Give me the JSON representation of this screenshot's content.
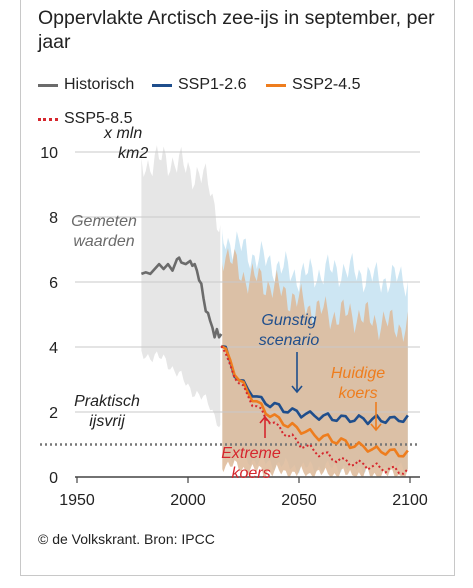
{
  "title": "Oppervlakte Arctisch zee-ijs in september, per jaar",
  "legend": [
    {
      "label": "Historisch",
      "color": "#6b6b6b",
      "style": "solid"
    },
    {
      "label": "SSP1-2.6",
      "color": "#1f4e8c",
      "style": "solid"
    },
    {
      "label": "SSP2-4.5",
      "color": "#ee7d1e",
      "style": "solid"
    },
    {
      "label": "SSP5-8.5",
      "color": "#d6262d",
      "style": "dotted"
    }
  ],
  "unit_label_line1": "x mln",
  "unit_label_line2": "km2",
  "source": "© de Volkskrant. Bron: IPCC",
  "annotations": {
    "gemeten_1": "Gemeten",
    "gemeten_2": "waarden",
    "praktisch_1": "Praktisch",
    "praktisch_2": "ijsvrij",
    "gunstig_1": "Gunstig",
    "gunstig_2": "scenario",
    "huidige_1": "Huidige",
    "huidige_2": "koers",
    "extreme_1": "Extreme",
    "extreme_2": "koers"
  },
  "chart_data": {
    "type": "line",
    "xlabel": "",
    "ylabel": "x mln km2",
    "xlim": [
      1950,
      2100
    ],
    "ylim": [
      0,
      10
    ],
    "x_ticks": [
      1950,
      2000,
      2050,
      2100
    ],
    "y_ticks": [
      0,
      2,
      4,
      6,
      8,
      10
    ],
    "threshold": {
      "y": 1,
      "style": "dotted"
    },
    "grid": true,
    "series": [
      {
        "name": "Historisch",
        "color": "#6b6b6b",
        "points": [
          [
            1979,
            6.25
          ],
          [
            1981,
            6.3
          ],
          [
            1983,
            6.25
          ],
          [
            1985,
            6.4
          ],
          [
            1987,
            6.55
          ],
          [
            1989,
            6.4
          ],
          [
            1991,
            6.55
          ],
          [
            1993,
            6.35
          ],
          [
            1995,
            6.7
          ],
          [
            1996,
            6.75
          ],
          [
            1997,
            6.6
          ],
          [
            1999,
            6.55
          ],
          [
            2001,
            6.65
          ],
          [
            2002,
            6.5
          ],
          [
            2003,
            6.55
          ],
          [
            2004,
            6.35
          ],
          [
            2005,
            6.05
          ],
          [
            2006,
            5.95
          ],
          [
            2007,
            5.5
          ],
          [
            2008,
            5.1
          ],
          [
            2009,
            5.05
          ],
          [
            2010,
            4.8
          ],
          [
            2011,
            4.6
          ],
          [
            2012,
            4.3
          ],
          [
            2013,
            4.55
          ],
          [
            2014,
            4.3
          ],
          [
            2015,
            4.4
          ]
        ]
      },
      {
        "name": "SSP1-2.6",
        "color": "#1f4e8c",
        "points": [
          [
            2015,
            4.1
          ],
          [
            2017,
            3.9
          ],
          [
            2019,
            3.5
          ],
          [
            2021,
            3.2
          ],
          [
            2023,
            3.0
          ],
          [
            2025,
            2.85
          ],
          [
            2027,
            2.7
          ],
          [
            2029,
            2.6
          ],
          [
            2031,
            2.45
          ],
          [
            2033,
            2.35
          ],
          [
            2035,
            2.3
          ],
          [
            2037,
            2.25
          ],
          [
            2039,
            2.2
          ],
          [
            2041,
            2.15
          ],
          [
            2043,
            2.1
          ],
          [
            2045,
            2.05
          ],
          [
            2047,
            2.0
          ],
          [
            2049,
            2.0
          ],
          [
            2051,
            1.95
          ],
          [
            2053,
            1.95
          ],
          [
            2055,
            1.9
          ],
          [
            2057,
            1.9
          ],
          [
            2059,
            1.88
          ],
          [
            2061,
            1.85
          ],
          [
            2063,
            1.85
          ],
          [
            2065,
            1.82
          ],
          [
            2067,
            1.82
          ],
          [
            2069,
            1.8
          ],
          [
            2071,
            1.8
          ],
          [
            2073,
            1.8
          ],
          [
            2075,
            1.78
          ],
          [
            2077,
            1.78
          ],
          [
            2079,
            1.78
          ],
          [
            2081,
            1.75
          ],
          [
            2083,
            1.78
          ],
          [
            2085,
            1.78
          ],
          [
            2087,
            1.75
          ],
          [
            2089,
            1.78
          ],
          [
            2091,
            1.78
          ],
          [
            2093,
            1.75
          ],
          [
            2095,
            1.8
          ],
          [
            2097,
            1.78
          ],
          [
            2099,
            1.8
          ]
        ]
      },
      {
        "name": "SSP2-4.5",
        "color": "#ee7d1e",
        "points": [
          [
            2015,
            4.1
          ],
          [
            2017,
            3.85
          ],
          [
            2019,
            3.55
          ],
          [
            2021,
            3.25
          ],
          [
            2023,
            3.0
          ],
          [
            2025,
            2.8
          ],
          [
            2027,
            2.6
          ],
          [
            2029,
            2.45
          ],
          [
            2031,
            2.3
          ],
          [
            2033,
            2.15
          ],
          [
            2035,
            2.0
          ],
          [
            2037,
            1.95
          ],
          [
            2039,
            1.85
          ],
          [
            2041,
            1.75
          ],
          [
            2043,
            1.7
          ],
          [
            2045,
            1.6
          ],
          [
            2047,
            1.55
          ],
          [
            2049,
            1.5
          ],
          [
            2051,
            1.45
          ],
          [
            2053,
            1.4
          ],
          [
            2055,
            1.35
          ],
          [
            2057,
            1.3
          ],
          [
            2059,
            1.25
          ],
          [
            2061,
            1.22
          ],
          [
            2063,
            1.2
          ],
          [
            2065,
            1.15
          ],
          [
            2067,
            1.12
          ],
          [
            2069,
            1.1
          ],
          [
            2071,
            1.05
          ],
          [
            2073,
            1.0
          ],
          [
            2075,
            0.98
          ],
          [
            2077,
            0.95
          ],
          [
            2079,
            0.92
          ],
          [
            2081,
            0.9
          ],
          [
            2083,
            0.85
          ],
          [
            2085,
            0.82
          ],
          [
            2087,
            0.8
          ],
          [
            2089,
            0.8
          ],
          [
            2091,
            0.78
          ],
          [
            2093,
            0.75
          ],
          [
            2095,
            0.72
          ],
          [
            2097,
            0.72
          ],
          [
            2099,
            0.72
          ]
        ]
      },
      {
        "name": "SSP5-8.5",
        "color": "#d6262d",
        "style": "dotted",
        "points": [
          [
            2015,
            4.1
          ],
          [
            2017,
            3.7
          ],
          [
            2019,
            3.4
          ],
          [
            2021,
            3.15
          ],
          [
            2023,
            2.9
          ],
          [
            2025,
            2.7
          ],
          [
            2027,
            2.5
          ],
          [
            2029,
            2.3
          ],
          [
            2031,
            2.15
          ],
          [
            2033,
            2.0
          ],
          [
            2035,
            1.85
          ],
          [
            2037,
            1.75
          ],
          [
            2039,
            1.6
          ],
          [
            2041,
            1.5
          ],
          [
            2043,
            1.4
          ],
          [
            2045,
            1.3
          ],
          [
            2047,
            1.2
          ],
          [
            2049,
            1.1
          ],
          [
            2051,
            1.0
          ],
          [
            2053,
            0.95
          ],
          [
            2055,
            0.88
          ],
          [
            2057,
            0.8
          ],
          [
            2059,
            0.75
          ],
          [
            2061,
            0.7
          ],
          [
            2063,
            0.65
          ],
          [
            2065,
            0.6
          ],
          [
            2067,
            0.55
          ],
          [
            2069,
            0.5
          ],
          [
            2071,
            0.48
          ],
          [
            2073,
            0.45
          ],
          [
            2075,
            0.42
          ],
          [
            2077,
            0.4
          ],
          [
            2079,
            0.38
          ],
          [
            2081,
            0.35
          ],
          [
            2083,
            0.32
          ],
          [
            2085,
            0.3
          ],
          [
            2087,
            0.28
          ],
          [
            2089,
            0.25
          ],
          [
            2091,
            0.23
          ],
          [
            2093,
            0.22
          ],
          [
            2095,
            0.2
          ],
          [
            2097,
            0.18
          ],
          [
            2099,
            0.15
          ]
        ]
      }
    ],
    "bands": [
      {
        "name": "Historisch spreiding",
        "color": "#e6e6e6",
        "upper": [
          [
            1979,
            9.6
          ],
          [
            1990,
            9.8
          ],
          [
            2000,
            9.5
          ],
          [
            2010,
            9.0
          ],
          [
            2015,
            7.5
          ]
        ],
        "lower": [
          [
            1979,
            3.8
          ],
          [
            1990,
            3.6
          ],
          [
            2000,
            2.8
          ],
          [
            2010,
            2.2
          ],
          [
            2015,
            1.5
          ]
        ]
      },
      {
        "name": "SSP1-2.6 spreiding",
        "color": "#cde6f3",
        "upper": [
          [
            2015,
            7.4
          ],
          [
            2030,
            6.8
          ],
          [
            2050,
            6.2
          ],
          [
            2070,
            6.4
          ],
          [
            2085,
            6.1
          ],
          [
            2099,
            6.1
          ]
        ],
        "lower": [
          [
            2015,
            0.7
          ],
          [
            2030,
            0.5
          ],
          [
            2050,
            0.3
          ],
          [
            2070,
            0.3
          ],
          [
            2099,
            0.3
          ]
        ]
      },
      {
        "name": "SSP2-4.5 spreiding",
        "color": "#ddb898",
        "upper": [
          [
            2015,
            7.0
          ],
          [
            2025,
            6.2
          ],
          [
            2035,
            6.0
          ],
          [
            2045,
            5.6
          ],
          [
            2055,
            5.2
          ],
          [
            2065,
            5.0
          ],
          [
            2075,
            5.0
          ],
          [
            2085,
            4.8
          ],
          [
            2099,
            4.6
          ]
        ],
        "lower": [
          [
            2015,
            0.4
          ],
          [
            2030,
            0.2
          ],
          [
            2050,
            0.1
          ],
          [
            2099,
            0.05
          ]
        ]
      }
    ]
  }
}
